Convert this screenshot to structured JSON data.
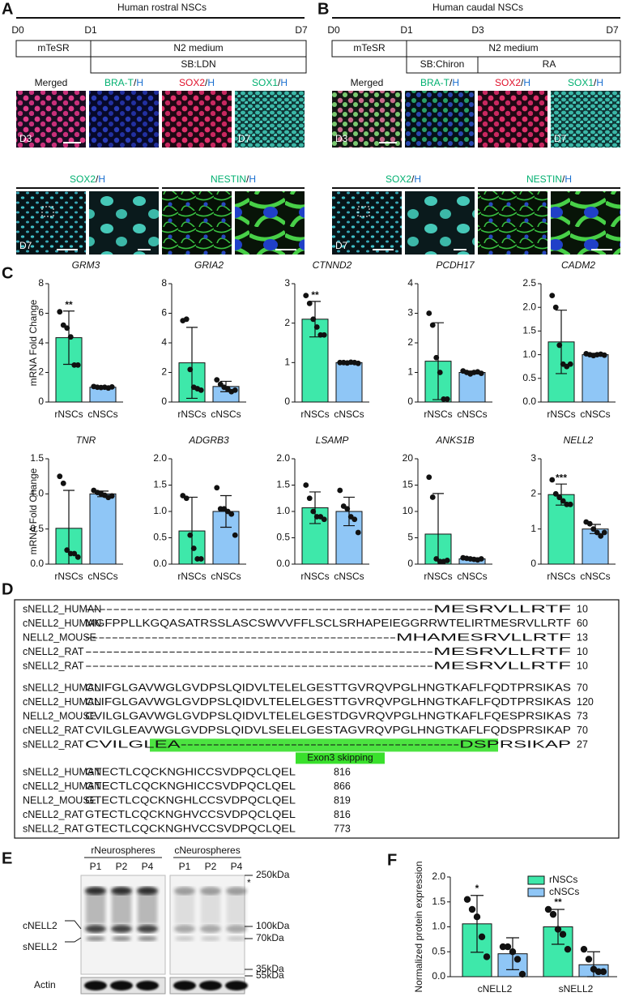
{
  "panel_labels": [
    "A",
    "B",
    "C",
    "D",
    "E",
    "F"
  ],
  "rostral": {
    "title": "Human rostral NSCs",
    "days": [
      "D0",
      "D1",
      "D7"
    ],
    "media": [
      "mTeSR",
      "N2 medium",
      "SB:LDN"
    ],
    "row1": [
      {
        "parts": [
          "Merged"
        ],
        "colors": [
          "#111111"
        ]
      },
      {
        "parts": [
          "BRA-T",
          "/",
          "H"
        ],
        "colors": [
          "#00b070",
          "#111111",
          "#1a6fd0"
        ]
      },
      {
        "parts": [
          "SOX2",
          "/",
          "H"
        ],
        "colors": [
          "#e0102a",
          "#111111",
          "#1a6fd0"
        ]
      },
      {
        "parts": [
          "SOX1",
          "/",
          "H"
        ],
        "colors": [
          "#00b070",
          "#111111",
          "#1a6fd0"
        ]
      }
    ],
    "row1_days": [
      "D3",
      null,
      null,
      "D7"
    ],
    "row2": [
      {
        "parts": [
          "SOX2",
          "/",
          "H"
        ],
        "colors": [
          "#00b070",
          "#111111",
          "#1a6fd0"
        ]
      },
      {
        "parts": [
          "NESTIN",
          "/",
          "H"
        ],
        "colors": [
          "#00b070",
          "#111111",
          "#1a6fd0"
        ]
      }
    ],
    "row2_day": "D7"
  },
  "caudal": {
    "title": "Human caudal NSCs",
    "days": [
      "D0",
      "D1",
      "D3",
      "D7"
    ],
    "media": [
      "mTeSR",
      "N2 medium",
      "SB:Chiron",
      "RA"
    ],
    "row1": [
      {
        "parts": [
          "Merged"
        ],
        "colors": [
          "#111111"
        ]
      },
      {
        "parts": [
          "BRA-T",
          "/",
          "H"
        ],
        "colors": [
          "#00b070",
          "#111111",
          "#1a6fd0"
        ]
      },
      {
        "parts": [
          "SOX2",
          "/",
          "H"
        ],
        "colors": [
          "#e0102a",
          "#111111",
          "#1a6fd0"
        ]
      },
      {
        "parts": [
          "SOX1",
          "/",
          "H"
        ],
        "colors": [
          "#00b070",
          "#111111",
          "#1a6fd0"
        ]
      }
    ],
    "row1_days": [
      "D3",
      null,
      null,
      "D7"
    ],
    "row2": [
      {
        "parts": [
          "SOX2",
          "/",
          "H"
        ],
        "colors": [
          "#00b070",
          "#111111",
          "#1a6fd0"
        ]
      },
      {
        "parts": [
          "NESTIN",
          "/",
          "H"
        ],
        "colors": [
          "#00b070",
          "#111111",
          "#1a6fd0"
        ]
      }
    ],
    "row2_day": "D7"
  },
  "chart_data": [
    {
      "type": "bar",
      "title": "GRM3",
      "y_label": "mRNA  Fold Change",
      "categories": [
        "rNSCs",
        "cNSCs"
      ],
      "values": [
        4.35,
        1.0
      ],
      "errors": [
        1.8,
        0.05
      ],
      "colors": [
        "#3ee8aa",
        "#8fc6f6"
      ],
      "points": [
        [
          6.1,
          5.2,
          5.0,
          4.4,
          2.5,
          2.5
        ],
        [
          1.05,
          1.0,
          0.98,
          1.0,
          0.95,
          1.02
        ]
      ],
      "significance": [
        "**",
        null
      ],
      "ylim": [
        0,
        8
      ],
      "yticks": [
        0,
        2,
        4,
        6,
        8
      ]
    },
    {
      "type": "bar",
      "title": "GRIA2",
      "categories": [
        "rNSCs",
        "cNSCs"
      ],
      "values": [
        2.65,
        1.05
      ],
      "errors": [
        2.4,
        0.35
      ],
      "colors": [
        "#3ee8aa",
        "#8fc6f6"
      ],
      "points": [
        [
          5.5,
          5.6,
          2.2,
          1.0,
          0.9,
          0.8
        ],
        [
          1.5,
          1.2,
          1.0,
          0.9,
          0.7,
          0.8
        ]
      ],
      "significance": [
        null,
        null
      ],
      "ylim": [
        0,
        8
      ],
      "yticks": [
        0,
        2,
        4,
        6,
        8
      ]
    },
    {
      "type": "bar",
      "title": "CTNND2",
      "categories": [
        "rNSCs",
        "cNSCs"
      ],
      "values": [
        2.1,
        1.0
      ],
      "errors": [
        0.45,
        0.02
      ],
      "colors": [
        "#3ee8aa",
        "#8fc6f6"
      ],
      "points": [
        [
          2.7,
          2.5,
          2.1,
          1.9,
          1.7,
          1.7
        ],
        [
          1.0,
          1.0,
          0.99,
          1.01,
          1.0,
          0.98
        ]
      ],
      "significance": [
        "**",
        null
      ],
      "ylim": [
        0,
        3
      ],
      "yticks": [
        0,
        1,
        2,
        3
      ]
    },
    {
      "type": "bar",
      "title": "PCDH17",
      "categories": [
        "rNSCs",
        "cNSCs"
      ],
      "values": [
        1.38,
        1.0
      ],
      "errors": [
        1.3,
        0.05
      ],
      "colors": [
        "#3ee8aa",
        "#8fc6f6"
      ],
      "points": [
        [
          3.0,
          2.6,
          1.5,
          1.0,
          0.1,
          0.1
        ],
        [
          1.05,
          1.0,
          0.95,
          1.0,
          1.02,
          0.97
        ]
      ],
      "significance": [
        null,
        null
      ],
      "ylim": [
        0,
        4
      ],
      "yticks": [
        0,
        1,
        2,
        3,
        4
      ]
    },
    {
      "type": "bar",
      "title": "CADM2",
      "categories": [
        "rNSCs",
        "cNSCs"
      ],
      "values": [
        1.27,
        1.0
      ],
      "errors": [
        0.67,
        0.03
      ],
      "colors": [
        "#3ee8aa",
        "#8fc6f6"
      ],
      "points": [
        [
          2.25,
          2.0,
          1.2,
          0.8,
          0.75,
          0.8
        ],
        [
          1.02,
          1.0,
          0.98,
          1.0,
          1.01,
          0.99
        ]
      ],
      "significance": [
        null,
        null
      ],
      "ylim": [
        0,
        2.5
      ],
      "yticks": [
        {
          "value": 0,
          "label": "0.0"
        },
        0.5,
        {
          "value": 1,
          "label": "1.0"
        },
        1.5,
        {
          "value": 2,
          "label": "2.0"
        },
        2.5
      ]
    },
    {
      "type": "bar",
      "title": "TNR",
      "y_label": "mRNA  Fold Change",
      "categories": [
        "rNSCs",
        "cNSCs"
      ],
      "values": [
        0.51,
        1.0
      ],
      "errors": [
        0.54,
        0.04
      ],
      "colors": [
        "#3ee8aa",
        "#8fc6f6"
      ],
      "points": [
        [
          1.25,
          1.15,
          0.2,
          0.15,
          0.15,
          0.1
        ],
        [
          1.05,
          1.02,
          1.0,
          0.98,
          0.95,
          0.97
        ]
      ],
      "significance": [
        null,
        null
      ],
      "ylim": [
        0,
        1.5
      ],
      "yticks": [
        {
          "value": 0,
          "label": "0.0"
        },
        0.5,
        {
          "value": 1,
          "label": "1.0"
        },
        1.5
      ]
    },
    {
      "type": "bar",
      "title": "ADGRB3",
      "categories": [
        "rNSCs",
        "cNSCs"
      ],
      "values": [
        0.63,
        1.0
      ],
      "errors": [
        0.64,
        0.3
      ],
      "colors": [
        "#3ee8aa",
        "#8fc6f6"
      ],
      "points": [
        [
          1.3,
          1.25,
          0.55,
          0.3,
          0.1,
          0.1
        ],
        [
          1.45,
          1.05,
          1.05,
          1.0,
          0.95,
          0.55
        ]
      ],
      "significance": [
        null,
        null
      ],
      "ylim": [
        0,
        2
      ],
      "yticks": [
        {
          "value": 0,
          "label": "0.0"
        },
        0.5,
        {
          "value": 1,
          "label": "1.0"
        },
        1.5,
        {
          "value": 2,
          "label": "2.0"
        }
      ]
    },
    {
      "type": "bar",
      "title": "LSAMP",
      "categories": [
        "rNSCs",
        "cNSCs"
      ],
      "values": [
        1.07,
        1.0
      ],
      "errors": [
        0.3,
        0.27
      ],
      "colors": [
        "#3ee8aa",
        "#8fc6f6"
      ],
      "points": [
        [
          1.5,
          1.25,
          1.0,
          0.9,
          0.9,
          0.85
        ],
        [
          1.4,
          1.1,
          1.05,
          0.9,
          0.85,
          0.6
        ]
      ],
      "significance": [
        null,
        null
      ],
      "ylim": [
        0,
        2
      ],
      "yticks": [
        {
          "value": 0,
          "label": "0.0"
        },
        0.5,
        {
          "value": 1,
          "label": "1.0"
        },
        1.5,
        {
          "value": 2,
          "label": "2.0"
        }
      ]
    },
    {
      "type": "bar",
      "title": "ANKS1B",
      "categories": [
        "rNSCs",
        "cNSCs"
      ],
      "values": [
        5.7,
        1.0
      ],
      "errors": [
        7.7,
        0.2
      ],
      "colors": [
        "#3ee8aa",
        "#8fc6f6"
      ],
      "points": [
        [
          16.5,
          12.7,
          1.0,
          0.5,
          0.5,
          0.7
        ],
        [
          1.2,
          1.1,
          1.0,
          0.9,
          0.8,
          1.0
        ]
      ],
      "significance": [
        null,
        null
      ],
      "ylim": [
        0,
        20
      ],
      "yticks": [
        0,
        5,
        10,
        15,
        20
      ]
    },
    {
      "type": "bar",
      "title": "NELL2",
      "categories": [
        "rNSCs",
        "cNSCs"
      ],
      "values": [
        1.98,
        1.0
      ],
      "errors": [
        0.3,
        0.13
      ],
      "colors": [
        "#3ee8aa",
        "#8fc6f6"
      ],
      "points": [
        [
          2.4,
          2.0,
          1.9,
          1.8,
          1.7,
          1.7
        ],
        [
          1.2,
          1.15,
          1.0,
          0.9,
          0.8,
          0.9
        ]
      ],
      "significance": [
        "***",
        null
      ],
      "ylim": [
        0,
        3
      ],
      "yticks": [
        0,
        1,
        2,
        3
      ]
    },
    {
      "type": "grouped_bar",
      "y_label": "Normalized protein expression",
      "categories": [
        "cNELL2",
        "sNELL2"
      ],
      "legend": "upper right",
      "series": [
        {
          "name": "rNSCs",
          "color": "#3ee8aa",
          "values": [
            1.06,
            1.0
          ],
          "errors": [
            0.57,
            0.35
          ],
          "points": [
            [
              1.55,
              1.35,
              1.2,
              0.8,
              0.4
            ],
            [
              1.35,
              1.25,
              0.95,
              0.85,
              0.55
            ]
          ]
        },
        {
          "name": "cNSCs",
          "color": "#8fc6f6",
          "values": [
            0.46,
            0.24
          ],
          "errors": [
            0.32,
            0.26
          ],
          "points": [
            [
              0.6,
              0.6,
              0.5,
              0.35,
              0.05
            ],
            [
              0.55,
              0.35,
              0.15,
              0.1,
              0.1
            ]
          ]
        }
      ],
      "significance": [
        "*",
        "**"
      ],
      "ylim": [
        0,
        2
      ],
      "yticks": [
        {
          "value": 0,
          "label": "0.0"
        },
        0.5,
        {
          "value": 1,
          "label": "1.0"
        },
        1.5,
        {
          "value": 2,
          "label": "2.0"
        }
      ]
    }
  ],
  "alignment": {
    "colors": [
      "#1a73c0",
      "#e00010",
      "#111111",
      "#e010e0",
      "#00a878"
    ],
    "blocks": [
      [
        {
          "name": "sNELL2_HUMAN",
          "sequence": "--------------------------------------------------MESRVLLRTF",
          "position": "10"
        },
        {
          "name": "cNELL2_HUMAN",
          "sequence": "MGFPPLLKGQASATRSSLASCSWVVFFLSCLSRHAPEIEGGRRWTELIRTMESRVLLRTF",
          "position": "60"
        },
        {
          "name": "NELL2_MOUSE",
          "sequence": "-----------------------------------------------MHAMESRVLLRTF",
          "position": "13"
        },
        {
          "name": "cNELL2_RAT",
          "sequence": "--------------------------------------------------MESRVLLRTF",
          "position": "10"
        },
        {
          "name": "sNELL2_RAT",
          "sequence": "--------------------------------------------------MESRVLLRTF",
          "position": "10"
        }
      ],
      [
        {
          "name": "sNELL2_HUMAN",
          "sequence": "CLIFGLGAVWGLGVDPSLQIDVLTELELGESTTGVRQVPGLHNGTKAFLFQDTPRSIKAS",
          "position": "70"
        },
        {
          "name": "cNELL2_HUMAN",
          "sequence": "CLIFGLGAVWGLGVDPSLQIDVLTELELGESTTGVRQVPGLHNGTKAFLFQDTPRSIKAS",
          "position": "120"
        },
        {
          "name": "NELL2_MOUSE",
          "sequence": "CVILGLGAVWGLGVDPSLQIDVLTELELGESTDGVRQVPGLHNGTKAFLFQESPRSIKAS",
          "position": "73"
        },
        {
          "name": "cNELL2_RAT",
          "sequence": "CVILGLEAVWGLGVDPSLQIDVLSELELGESTAGVRQVPGLHNGTKAFLFQDSPRSIKAP",
          "position": "70"
        },
        {
          "name": "sNELL2_RAT",
          "sequence": "CVILGLEA-------------------------------------------DSPRSIKAP",
          "position": "27"
        }
      ],
      [
        {
          "name": "sNELL2_HUMAN",
          "sequence": "GTECTLCQCKNGHICCSVDPQCLQEL",
          "position": "816"
        },
        {
          "name": "cNELL2_HUMAN",
          "sequence": "GTECTLCQCKNGHICCSVDPQCLQEL",
          "position": "866"
        },
        {
          "name": "NELL2_MOUSE",
          "sequence": "GTECTLCQCKNGHLCCSVDPQCLQEL",
          "position": "819"
        },
        {
          "name": "cNELL2_RAT",
          "sequence": "GTECTLCQCKNGHVCCSVDPQCLQEL",
          "position": "816"
        },
        {
          "name": "sNELL2_RAT",
          "sequence": "GTECTLCQCKNGHVCCSVDPQCLQEL",
          "position": "773"
        }
      ]
    ],
    "skip_label": "Exon3 skipping"
  },
  "blot": {
    "groups": [
      "rNeurospheres",
      "cNeurospheres"
    ],
    "lanes": [
      [
        "P1",
        "P2",
        "P4"
      ],
      [
        "P1",
        "P2",
        "P4"
      ]
    ],
    "bands": [
      "cNELL2",
      "sNELL2"
    ],
    "markers": [
      "250kDa",
      "100kDa",
      "70kDa",
      "35kDa"
    ],
    "loading_marker": "55kDa",
    "star": "*",
    "loading": "Actin"
  }
}
